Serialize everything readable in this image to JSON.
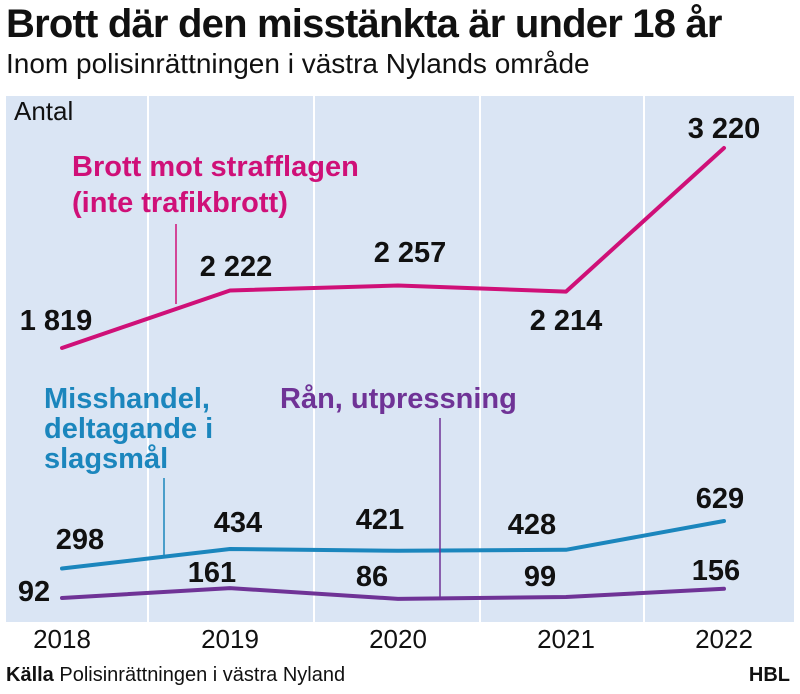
{
  "header": {
    "title": "Brott där den misstänkta är under 18 år",
    "subtitle": "Inom polisinrättningen i västra Nylands område"
  },
  "footer": {
    "source_label": "Källa",
    "source_text": "Polisinrättningen i västra Nyland",
    "brand": "HBL"
  },
  "colors": {
    "background": "#dae5f4",
    "grid": "#ffffff",
    "crimes": "#cf1078",
    "assault": "#1b86bd",
    "robbery": "#6f3396",
    "text": "#111111"
  },
  "chart_data": {
    "type": "line",
    "ylabel": "Antal",
    "categories": [
      "2018",
      "2019",
      "2020",
      "2021",
      "2022"
    ],
    "grid": true,
    "series": [
      {
        "key": "crimes",
        "name": "Brott mot strafflagen (inte trafikbrott)",
        "values": [
          1819,
          2222,
          2257,
          2214,
          3220
        ],
        "value_labels": [
          "1 819",
          "2 222",
          "2 257",
          "2 214",
          "3 220"
        ]
      },
      {
        "key": "assault",
        "name": "Misshandel, deltagande i slagsmål",
        "values": [
          298,
          434,
          421,
          428,
          629
        ],
        "value_labels": [
          "298",
          "434",
          "421",
          "428",
          "629"
        ]
      },
      {
        "key": "robbery",
        "name": "Rån, utpressning",
        "values": [
          92,
          161,
          86,
          99,
          156
        ],
        "value_labels": [
          "92",
          "161",
          "86",
          "99",
          "156"
        ]
      }
    ],
    "legend": [
      {
        "series": "crimes",
        "lines": [
          "Brott mot strafflagen",
          "(inte trafikbrott)"
        ]
      },
      {
        "series": "assault",
        "lines": [
          "Misshandel,",
          "deltagande i",
          "slagsmål"
        ]
      },
      {
        "series": "robbery",
        "lines": [
          "Rån, utpressning"
        ]
      }
    ]
  }
}
